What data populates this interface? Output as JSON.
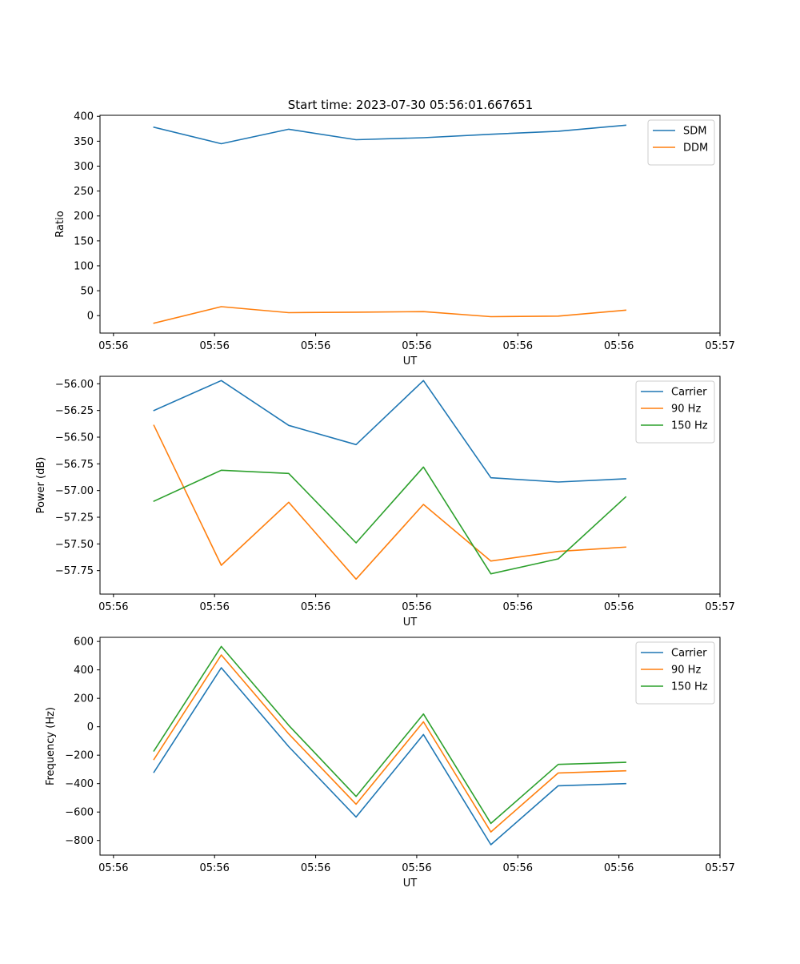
{
  "title": "Start time: 2023-07-30 05:56:01.667651",
  "colors": {
    "blue": "#1f77b4",
    "orange": "#ff7f0e",
    "green": "#2ca02c"
  },
  "chart_data": [
    {
      "type": "line",
      "title": "Start time: 2023-07-30 05:56:01.667651",
      "xlabel": "UT",
      "ylabel": "Ratio",
      "x": [
        1,
        2,
        3,
        4,
        5,
        6,
        7,
        8
      ],
      "xlim": [
        0.2,
        9.4
      ],
      "ylim": [
        -35,
        402
      ],
      "xticks": [
        0.4,
        1.9,
        3.4,
        4.9,
        6.4,
        7.9,
        9.4
      ],
      "xtick_labels": [
        "05:56",
        "05:56",
        "05:56",
        "05:56",
        "05:56",
        "05:56",
        "05:57"
      ],
      "yticks": [
        0,
        50,
        100,
        150,
        200,
        250,
        300,
        350,
        400
      ],
      "ytick_labels": [
        "0",
        "50",
        "100",
        "150",
        "200",
        "250",
        "300",
        "350",
        "400"
      ],
      "legend_position": "top-right",
      "series": [
        {
          "name": "SDM",
          "color": "#1f77b4",
          "values": [
            378,
            345,
            374,
            353,
            357,
            364,
            370,
            382
          ]
        },
        {
          "name": "DDM",
          "color": "#ff7f0e",
          "values": [
            -15,
            18,
            6,
            7,
            8,
            -2,
            -1,
            11
          ]
        }
      ]
    },
    {
      "type": "line",
      "title": "",
      "xlabel": "UT",
      "ylabel": "Power (dB)",
      "x": [
        1,
        2,
        3,
        4,
        5,
        6,
        7,
        8
      ],
      "xlim": [
        0.2,
        9.4
      ],
      "ylim": [
        -57.97,
        -55.93
      ],
      "xticks": [
        0.4,
        1.9,
        3.4,
        4.9,
        6.4,
        7.9,
        9.4
      ],
      "xtick_labels": [
        "05:56",
        "05:56",
        "05:56",
        "05:56",
        "05:56",
        "05:56",
        "05:57"
      ],
      "yticks": [
        -56.0,
        -56.25,
        -56.5,
        -56.75,
        -57.0,
        -57.25,
        -57.5,
        -57.75
      ],
      "ytick_labels": [
        "−56.00",
        "−56.25",
        "−56.50",
        "−56.75",
        "−57.00",
        "−57.25",
        "−57.50",
        "−57.75"
      ],
      "legend_position": "top-right",
      "series": [
        {
          "name": "Carrier",
          "color": "#1f77b4",
          "values": [
            -56.25,
            -55.97,
            -56.39,
            -56.57,
            -55.97,
            -56.88,
            -56.92,
            -56.89
          ]
        },
        {
          "name": "90 Hz",
          "color": "#ff7f0e",
          "values": [
            -56.39,
            -57.7,
            -57.11,
            -57.83,
            -57.13,
            -57.66,
            -57.57,
            -57.53
          ]
        },
        {
          "name": "150 Hz",
          "color": "#2ca02c",
          "values": [
            -57.1,
            -56.81,
            -56.84,
            -57.49,
            -56.78,
            -57.78,
            -57.64,
            -57.06
          ]
        }
      ]
    },
    {
      "type": "line",
      "title": "",
      "xlabel": "UT",
      "ylabel": "Frequency (Hz)",
      "x": [
        1,
        2,
        3,
        4,
        5,
        6,
        7,
        8
      ],
      "xlim": [
        0.2,
        9.4
      ],
      "ylim": [
        -903,
        629
      ],
      "xticks": [
        0.4,
        1.9,
        3.4,
        4.9,
        6.4,
        7.9,
        9.4
      ],
      "xtick_labels": [
        "05:56",
        "05:56",
        "05:56",
        "05:56",
        "05:56",
        "05:56",
        "05:57"
      ],
      "yticks": [
        -800,
        -600,
        -400,
        -200,
        0,
        200,
        400,
        600
      ],
      "ytick_labels": [
        "−800",
        "−600",
        "−400",
        "−200",
        "0",
        "200",
        "400",
        "600"
      ],
      "legend_position": "top-right",
      "series": [
        {
          "name": "Carrier",
          "color": "#1f77b4",
          "values": [
            -320,
            415,
            -140,
            -635,
            -55,
            -830,
            -415,
            -400
          ]
        },
        {
          "name": "90 Hz",
          "color": "#ff7f0e",
          "values": [
            -230,
            505,
            -50,
            -545,
            35,
            -740,
            -325,
            -310
          ]
        },
        {
          "name": "150 Hz",
          "color": "#2ca02c",
          "values": [
            -170,
            565,
            10,
            -490,
            90,
            -680,
            -265,
            -250
          ]
        }
      ]
    }
  ]
}
